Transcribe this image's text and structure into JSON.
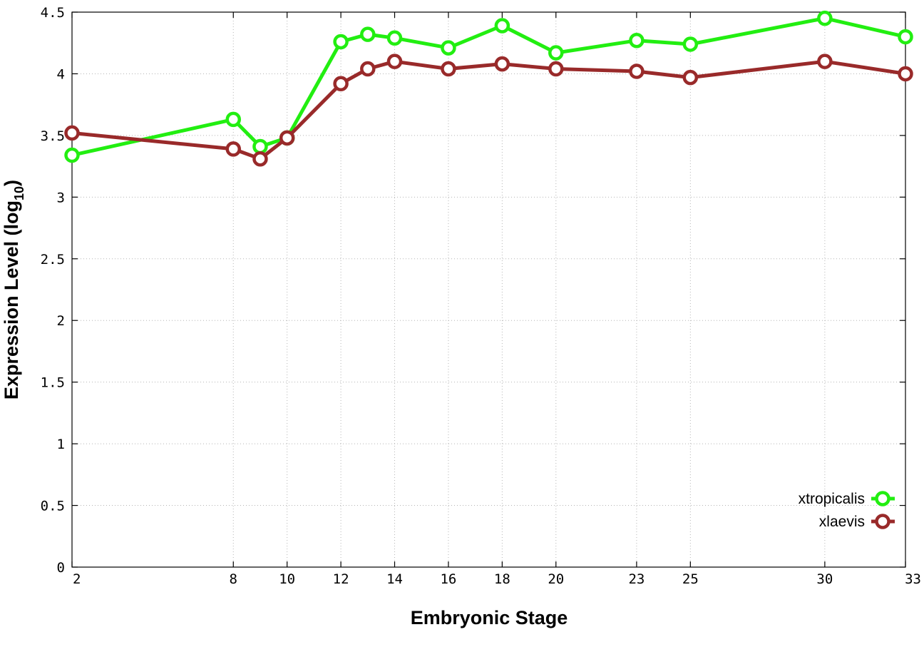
{
  "chart_data": {
    "type": "line",
    "xlabel": "Embryonic Stage",
    "ylabel_main": "Expression Level (log",
    "ylabel_sub": "10",
    "ylabel_close": ")",
    "xlim": [
      2,
      33
    ],
    "ylim": [
      0,
      4.5
    ],
    "x_ticks": [
      2,
      8,
      10,
      12,
      14,
      16,
      18,
      20,
      23,
      25,
      30,
      33
    ],
    "x_tick_labels": [
      "2",
      "8",
      "10",
      "12",
      "14",
      "16",
      "18",
      "20",
      "23",
      "25",
      "30",
      "33"
    ],
    "y_ticks": [
      0,
      0.5,
      1,
      1.5,
      2,
      2.5,
      3,
      3.5,
      4,
      4.5
    ],
    "y_tick_labels": [
      "0",
      "0.5",
      "1",
      "1.5",
      "2",
      "2.5",
      "3",
      "3.5",
      "4",
      "4.5"
    ],
    "grid": true,
    "legend_position": "bottom-right",
    "x": [
      2,
      8,
      9,
      10,
      12,
      13,
      14,
      16,
      18,
      20,
      23,
      25,
      30,
      33
    ],
    "series": [
      {
        "name": "xtropicalis",
        "color": "#22ee11",
        "values": [
          3.34,
          3.63,
          3.41,
          3.48,
          4.26,
          4.32,
          4.29,
          4.21,
          4.39,
          4.17,
          4.27,
          4.24,
          4.45,
          4.3
        ]
      },
      {
        "name": "xlaevis",
        "color": "#992a2a",
        "values": [
          3.52,
          3.39,
          3.31,
          3.48,
          3.92,
          4.04,
          4.1,
          4.04,
          4.08,
          4.04,
          4.02,
          3.97,
          4.1,
          4.0
        ]
      }
    ]
  }
}
